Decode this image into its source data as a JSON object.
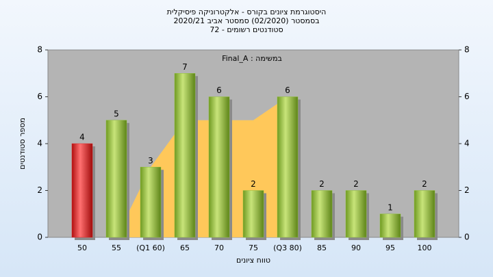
{
  "chart_data": {
    "type": "bar",
    "title": "היסטוגרמת ציונים בקורס - אלקטרוניקה פיסיקלית",
    "subtitle": [
      "בסמסטר  (02/2020)  סמסטר אביב 2020/21",
      "סטודנטים רשומים - 72"
    ],
    "annotation": "במשימה : Final_A",
    "x_label": "טווח ציונים",
    "y_label": "מספר סטודנטים",
    "categories": [
      "50",
      "55",
      "(Q1 60)",
      "65",
      "70",
      "75",
      "(Q3 80)",
      "85",
      "90",
      "95",
      "100"
    ],
    "values": [
      4,
      5,
      3,
      7,
      6,
      2,
      6,
      2,
      2,
      1,
      2
    ],
    "colors": [
      "#e02020",
      "#8fbf3a",
      "#8fbf3a",
      "#8fbf3a",
      "#8fbf3a",
      "#8fbf3a",
      "#8fbf3a",
      "#8fbf3a",
      "#8fbf3a",
      "#8fbf3a",
      "#8fbf3a"
    ],
    "area": {
      "color": "#ffc85a",
      "values": [
        null,
        0,
        3,
        5,
        5,
        5,
        6,
        null,
        null,
        null,
        null
      ]
    },
    "ylim": [
      0,
      8
    ],
    "yticks": [
      0,
      2,
      4,
      6,
      8
    ],
    "y2lim": [
      0,
      8
    ],
    "y2ticks": [
      0,
      2,
      4,
      6,
      8
    ]
  }
}
